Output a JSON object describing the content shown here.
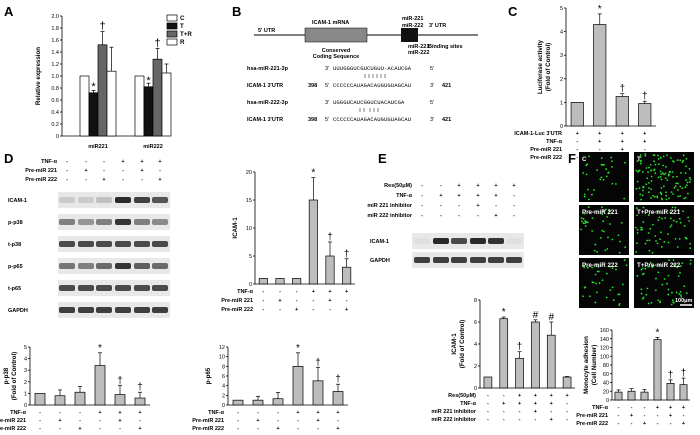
{
  "panel_labels": [
    "A",
    "B",
    "C",
    "D",
    "E",
    "F"
  ],
  "chart_data": [
    {
      "panel": "A",
      "type": "bar",
      "ylabel": "Relative expression",
      "ylim": [
        0,
        2.0
      ],
      "yticks": [
        "0",
        "0.2",
        "0.4",
        "0.6",
        "0.8",
        "1.0",
        "1.2",
        "1.4",
        "1.6",
        "1.8",
        "2.0"
      ],
      "categories": [
        "miR221",
        "miR222"
      ],
      "legend": [
        "C",
        "T",
        "T+R",
        "R"
      ],
      "series_colors": [
        "#ffffff",
        "#111111",
        "#666666",
        "#ffffff"
      ],
      "values": [
        [
          1.0,
          0.72,
          1.52,
          1.08
        ],
        [
          1.0,
          0.82,
          1.28,
          1.05
        ]
      ],
      "errors": [
        [
          0.0,
          0.04,
          0.22,
          0.4
        ],
        [
          0.0,
          0.06,
          0.18,
          0.15
        ]
      ],
      "marks": [
        [
          "",
          "*",
          "†",
          ""
        ],
        [
          "",
          "*",
          "†",
          ""
        ]
      ]
    },
    {
      "panel": "C",
      "type": "bar",
      "ylabel_lines": [
        "Luciferase activity",
        "(Fold of Control)"
      ],
      "ylim": [
        0,
        5
      ],
      "yticks": [
        "0",
        "1",
        "2",
        "3",
        "4",
        "5"
      ],
      "values": [
        1.0,
        4.3,
        1.25,
        0.95
      ],
      "errors": [
        0,
        0.45,
        0.12,
        0.1
      ],
      "marks": [
        "",
        "*",
        "†",
        "†"
      ],
      "conditions": [
        {
          "label": "ICAM-1-Luc 3'UTR",
          "signs": [
            "+",
            "+",
            "+",
            "+"
          ]
        },
        {
          "label": "TNF-α",
          "signs": [
            "-",
            "+",
            "+",
            "+"
          ]
        },
        {
          "label": "Pre-miR 221",
          "signs": [
            "-",
            "-",
            "+",
            "-"
          ]
        },
        {
          "label": "Pre-miR 222",
          "signs": [
            "-",
            "-",
            "-",
            "+"
          ]
        }
      ]
    },
    {
      "panel": "D-ICAM-1",
      "type": "bar",
      "ylabel": "ICAM-1",
      "ylim": [
        0,
        20
      ],
      "yticks": [
        "0",
        "5",
        "10",
        "15",
        "20"
      ],
      "values": [
        1,
        1,
        1,
        15,
        5,
        3
      ],
      "errors": [
        0,
        0,
        0,
        4,
        2.5,
        1.5
      ],
      "marks": [
        "",
        "",
        "",
        "*",
        "†",
        "†"
      ],
      "conditions": [
        {
          "label": "TNF-α",
          "signs": [
            "-",
            "-",
            "-",
            "+",
            "+",
            "+"
          ]
        },
        {
          "label": "Pre-miR 221",
          "signs": [
            "-",
            "+",
            "-",
            "-",
            "+",
            "-"
          ]
        },
        {
          "label": "Pre-miR 222",
          "signs": [
            "-",
            "-",
            "+",
            "-",
            "-",
            "+"
          ]
        }
      ]
    },
    {
      "panel": "D-p-p38",
      "type": "bar",
      "ylabel_lines": [
        "p-p38",
        "(Fold of Control)"
      ],
      "ylim": [
        0,
        5
      ],
      "yticks": [
        "0",
        "1",
        "2",
        "3",
        "4",
        "5"
      ],
      "values": [
        1,
        0.8,
        1.1,
        3.4,
        0.9,
        0.6
      ],
      "errors": [
        0,
        0.5,
        0.5,
        1.1,
        0.8,
        0.5
      ],
      "marks": [
        "",
        "",
        "",
        "*",
        "†",
        "†"
      ],
      "conditions": [
        {
          "label": "TNF-α",
          "signs": [
            "-",
            "-",
            "-",
            "+",
            "+",
            "+"
          ]
        },
        {
          "label": "Pre-miR 221",
          "signs": [
            "-",
            "+",
            "-",
            "-",
            "+",
            "-"
          ]
        },
        {
          "label": "Pre-miR 222",
          "signs": [
            "-",
            "-",
            "+",
            "-",
            "-",
            "+"
          ]
        }
      ]
    },
    {
      "panel": "D-p-p65",
      "type": "bar",
      "ylabel": "p-p65",
      "ylim": [
        0,
        12
      ],
      "yticks": [
        "0",
        "2",
        "4",
        "6",
        "8",
        "10",
        "12"
      ],
      "values": [
        1,
        1,
        1.3,
        8,
        5,
        2.8
      ],
      "errors": [
        0,
        0.8,
        1.3,
        2.8,
        2.8,
        1.5
      ],
      "marks": [
        "",
        "",
        "",
        "*",
        "†",
        "†"
      ],
      "conditions": [
        {
          "label": "TNF-α",
          "signs": [
            "-",
            "-",
            "-",
            "+",
            "+",
            "+"
          ]
        },
        {
          "label": "Pre-miR 221",
          "signs": [
            "-",
            "+",
            "-",
            "-",
            "+",
            "-"
          ]
        },
        {
          "label": "Pre-miR 222",
          "signs": [
            "-",
            "-",
            "+",
            "-",
            "-",
            "+"
          ]
        }
      ]
    },
    {
      "panel": "E",
      "type": "bar",
      "ylabel_lines": [
        "ICAM-1",
        "(Fold of Control)"
      ],
      "ylim": [
        0,
        8
      ],
      "yticks": [
        "0",
        "2",
        "4",
        "6",
        "8"
      ],
      "values": [
        1,
        6.3,
        2.7,
        6.0,
        4.8,
        1.0
      ],
      "errors": [
        0,
        0.15,
        0.6,
        0.2,
        1.2,
        0.05
      ],
      "marks": [
        "",
        "*",
        "†",
        "#",
        "#",
        ""
      ],
      "conditions": [
        {
          "label": "Res(50μM)",
          "signs": [
            "-",
            "-",
            "+",
            "+",
            "+",
            "+"
          ]
        },
        {
          "label": "TNF-α",
          "signs": [
            "-",
            "+",
            "+",
            "+",
            "+",
            "-"
          ]
        },
        {
          "label": "miR 221 inhibitor",
          "signs": [
            "-",
            "-",
            "-",
            "+",
            "-",
            "-"
          ]
        },
        {
          "label": "miR 222 inhibitor",
          "signs": [
            "-",
            "-",
            "-",
            "-",
            "+",
            "-"
          ]
        }
      ]
    },
    {
      "panel": "F",
      "type": "bar",
      "ylabel_lines": [
        "Monocyte adhesion",
        "(Cell Number)"
      ],
      "ylim": [
        0,
        160
      ],
      "yticks": [
        "0",
        "20",
        "40",
        "60",
        "80",
        "100",
        "120",
        "140",
        "160"
      ],
      "values": [
        18,
        20,
        18,
        138,
        38,
        35
      ],
      "errors": [
        5,
        6,
        6,
        5,
        8,
        15
      ],
      "marks": [
        "",
        "",
        "",
        "*",
        "†",
        "†"
      ],
      "conditions": [
        {
          "label": "TNF-α",
          "signs": [
            "-",
            "-",
            "-",
            "+",
            "+",
            "+"
          ]
        },
        {
          "label": "Pre-miR 221",
          "signs": [
            "-",
            "+",
            "-",
            "-",
            "+",
            "-"
          ]
        },
        {
          "label": "Pre-miR 222",
          "signs": [
            "-",
            "-",
            "+",
            "-",
            "-",
            "+"
          ]
        }
      ]
    }
  ],
  "panel_b": {
    "utr5": "5' UTR",
    "mrna": "ICAM-1 mRNA",
    "mirs": [
      "miR-221",
      "miR-222"
    ],
    "utr3": "3' UTR",
    "conserved": [
      "Conserved",
      "Coding Sequence"
    ],
    "binding": [
      "miR-221",
      "miR-222",
      "Binding sites"
    ],
    "seqs": [
      {
        "name": "hsa-miR-221-3p",
        "left": "3'",
        "seq": "UUUGGGUCGUCUGUU-ACAUCGA",
        "right": "5'",
        "num_left": "",
        "num_right": ""
      },
      {
        "name": "ICAM-1 3'UTR",
        "left": "5'",
        "seq": "CCCCCCAUAGACAUGUGUAGCAU",
        "right": "3'",
        "num_left": "398",
        "num_right": "421"
      },
      {
        "name": "hsa-miR-222-3p",
        "left": "3'",
        "seq": "UGGGUCAUCGGUCUACAUCGA",
        "right": "5'",
        "num_left": "",
        "num_right": ""
      },
      {
        "name": "ICAM-1 3'UTR",
        "left": "5'",
        "seq": "CCCCCCAUAGACAUGUGUAGCAU",
        "right": "3'",
        "num_left": "398",
        "num_right": "421"
      }
    ]
  },
  "blot_d": {
    "conditions": [
      {
        "label": "TNF-α",
        "signs": [
          "-",
          "-",
          "-",
          "+",
          "+",
          "+"
        ]
      },
      {
        "label": "Pre-miR 221",
        "signs": [
          "-",
          "+",
          "-",
          "-",
          "+",
          "-"
        ]
      },
      {
        "label": "Pre-miR 222",
        "signs": [
          "-",
          "-",
          "+",
          "-",
          "-",
          "+"
        ]
      }
    ],
    "bands": [
      "ICAM-1",
      "p-p38",
      "t-p38",
      "p-p65",
      "t-p65",
      "GAPDH"
    ]
  },
  "blot_e": {
    "conditions": [
      {
        "label": "Res(50μM)",
        "signs": [
          "-",
          "-",
          "+",
          "+",
          "+",
          "+"
        ]
      },
      {
        "label": "TNF-α",
        "signs": [
          "-",
          "+",
          "+",
          "+",
          "+",
          "-"
        ]
      },
      {
        "label": "miR 221 inhibitor",
        "signs": [
          "-",
          "-",
          "-",
          "+",
          "-",
          "-"
        ]
      },
      {
        "label": "miR 222 inhibitor",
        "signs": [
          "-",
          "-",
          "-",
          "-",
          "+",
          "-"
        ]
      }
    ],
    "bands": [
      "ICAM-1",
      "GAPDH"
    ]
  },
  "micro_f": {
    "labels": [
      "C",
      "T",
      "Pre-miR 221",
      "T+Pre-miR 221",
      "Pre-miR 222",
      "T+Pre-miR 222"
    ],
    "scale": "100μm"
  }
}
